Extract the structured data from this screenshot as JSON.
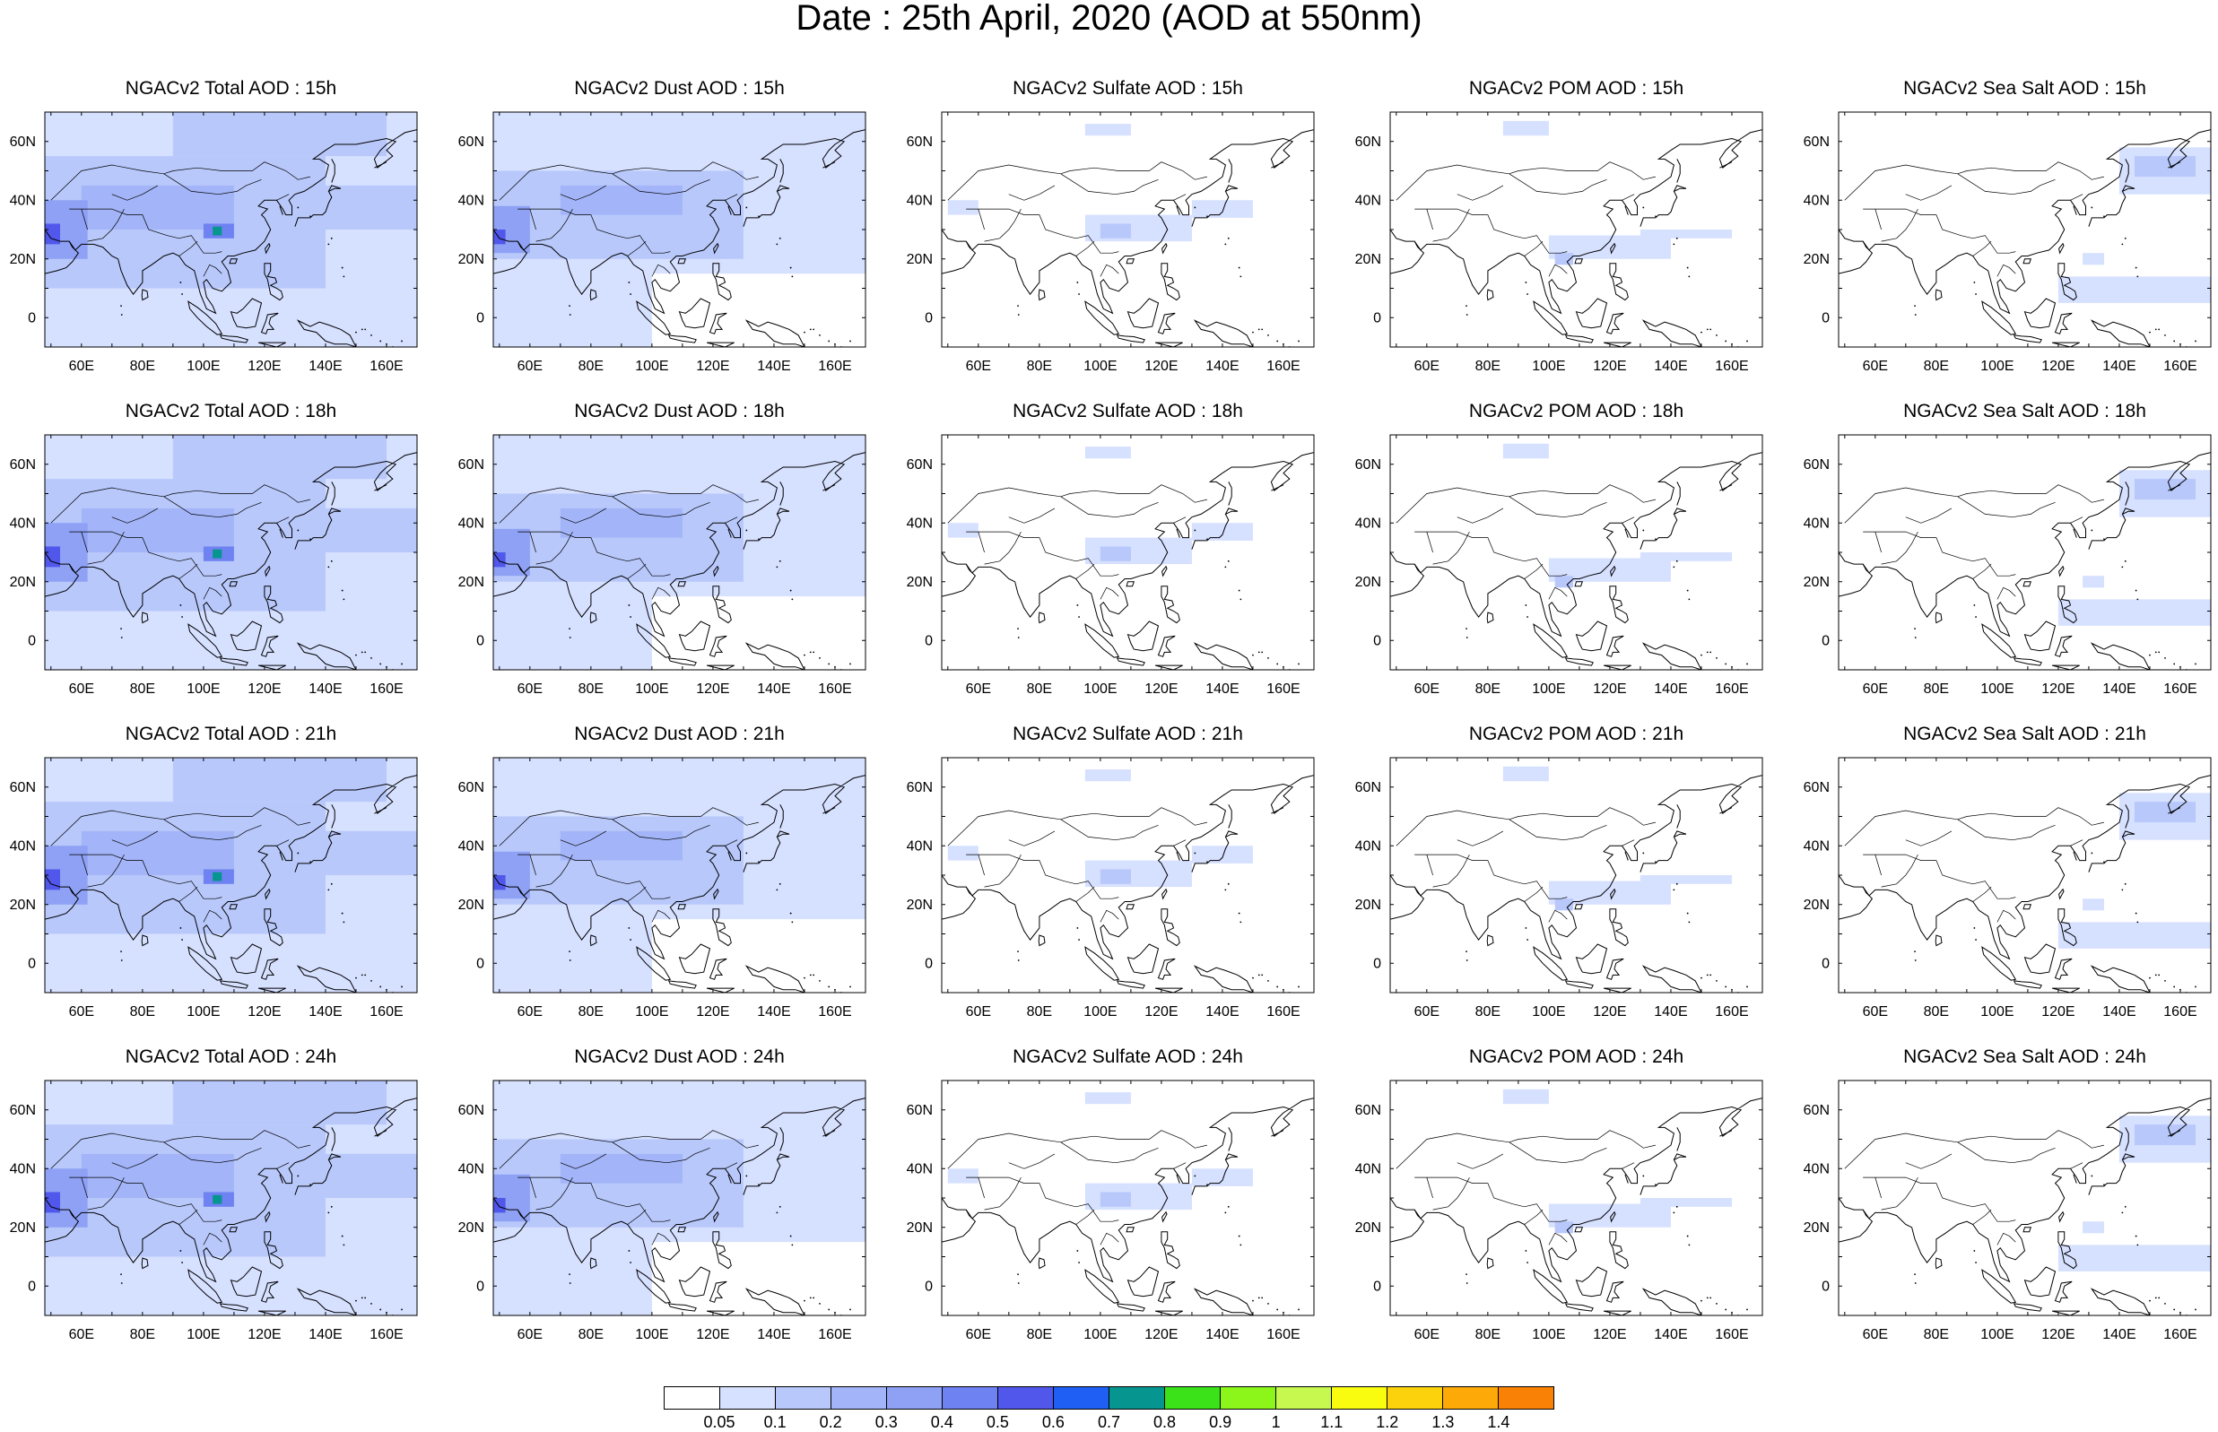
{
  "title": "Date : 25th April, 2020 (AOD at 550nm)",
  "map": {
    "lon_ticks": [
      "60E",
      "80E",
      "100E",
      "120E",
      "140E",
      "160E"
    ],
    "lat_ticks": [
      "60N",
      "40N",
      "20N",
      "0"
    ],
    "lon_values": [
      60,
      80,
      100,
      120,
      140,
      160
    ],
    "lat_values": [
      60,
      40,
      20,
      0
    ],
    "lon_range": [
      48,
      170
    ],
    "lat_range": [
      -10,
      70
    ]
  },
  "panels": [
    {
      "title": "NGACv2 Total AOD : 15h",
      "species": "total",
      "hour": "15h"
    },
    {
      "title": "NGACv2 Dust AOD : 15h",
      "species": "dust",
      "hour": "15h"
    },
    {
      "title": "NGACv2 Sulfate AOD : 15h",
      "species": "sulfate",
      "hour": "15h"
    },
    {
      "title": "NGACv2 POM AOD : 15h",
      "species": "pom",
      "hour": "15h"
    },
    {
      "title": "NGACv2 Sea Salt AOD : 15h",
      "species": "seasalt",
      "hour": "15h"
    },
    {
      "title": "NGACv2 Total AOD : 18h",
      "species": "total",
      "hour": "18h"
    },
    {
      "title": "NGACv2 Dust AOD : 18h",
      "species": "dust",
      "hour": "18h"
    },
    {
      "title": "NGACv2 Sulfate AOD : 18h",
      "species": "sulfate",
      "hour": "18h"
    },
    {
      "title": "NGACv2 POM AOD : 18h",
      "species": "pom",
      "hour": "18h"
    },
    {
      "title": "NGACv2 Sea Salt AOD : 18h",
      "species": "seasalt",
      "hour": "18h"
    },
    {
      "title": "NGACv2 Total AOD : 21h",
      "species": "total",
      "hour": "21h"
    },
    {
      "title": "NGACv2 Dust AOD : 21h",
      "species": "dust",
      "hour": "21h"
    },
    {
      "title": "NGACv2 Sulfate AOD : 21h",
      "species": "sulfate",
      "hour": "21h"
    },
    {
      "title": "NGACv2 POM AOD : 21h",
      "species": "pom",
      "hour": "21h"
    },
    {
      "title": "NGACv2 Sea Salt AOD : 21h",
      "species": "seasalt",
      "hour": "21h"
    },
    {
      "title": "NGACv2 Total AOD : 24h",
      "species": "total",
      "hour": "24h"
    },
    {
      "title": "NGACv2 Dust AOD : 24h",
      "species": "dust",
      "hour": "24h"
    },
    {
      "title": "NGACv2 Sulfate AOD : 24h",
      "species": "sulfate",
      "hour": "24h"
    },
    {
      "title": "NGACv2 POM AOD : 24h",
      "species": "pom",
      "hour": "24h"
    },
    {
      "title": "NGACv2 Sea Salt  AOD : 24h",
      "species": "seasalt",
      "hour": "24h"
    }
  ],
  "colorbar": {
    "labels": [
      "0.05",
      "0.1",
      "0.2",
      "0.3",
      "0.4",
      "0.5",
      "0.6",
      "0.7",
      "0.8",
      "0.9",
      "1",
      "1.1",
      "1.2",
      "1.3",
      "1.4"
    ],
    "colors": [
      "#ffffff",
      "#d6e0ff",
      "#b8c8fb",
      "#a3b5f8",
      "#8ea1f5",
      "#6f82f1",
      "#5057ea",
      "#1f5ff4",
      "#07958f",
      "#3be21a",
      "#8cf51a",
      "#c6f850",
      "#fafc10",
      "#fcd20c",
      "#fdaa08",
      "#f98206",
      "#f44513"
    ]
  },
  "colors": {
    "coastline": "#000000",
    "frame": "#000000"
  }
}
